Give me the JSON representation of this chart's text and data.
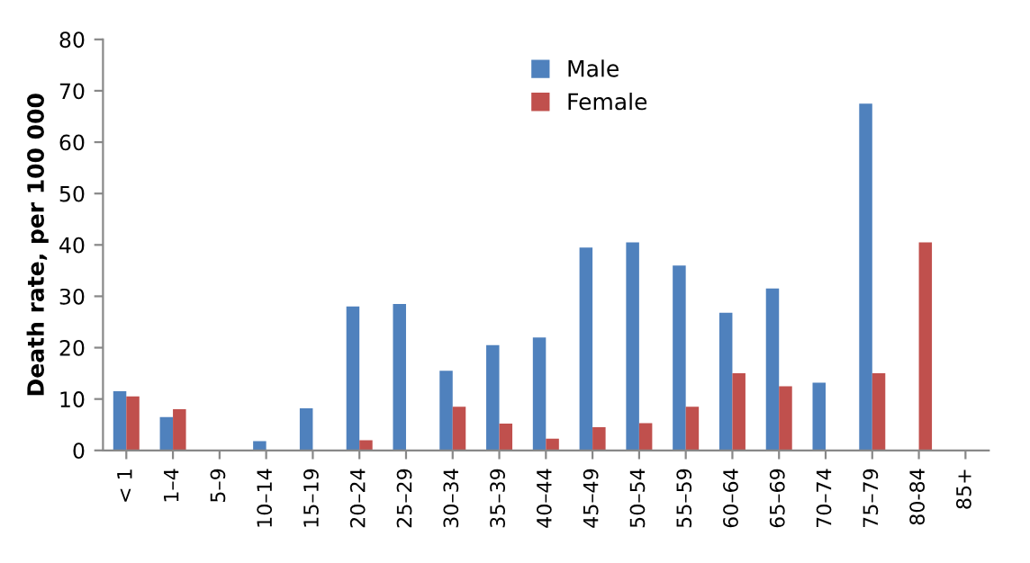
{
  "chart_data": {
    "type": "bar",
    "ylabel": "Death rate, per 100 000",
    "categories": [
      "< 1",
      "1–4",
      "5–9",
      "10–14",
      "15–19",
      "20–24",
      "25–29",
      "30–34",
      "35–39",
      "40–44",
      "45–49",
      "50–54",
      "55–59",
      "60–64",
      "65–69",
      "70–74",
      "75–79",
      "80-84",
      "85+"
    ],
    "series": [
      {
        "name": "Male",
        "color": "#4f81bd",
        "values": [
          11.5,
          6.5,
          0,
          1.8,
          8.2,
          28,
          28.5,
          15.5,
          20.5,
          22,
          39.5,
          40.5,
          36,
          26.8,
          31.5,
          13.2,
          67.5,
          0,
          0
        ]
      },
      {
        "name": "Female",
        "color": "#c0504d",
        "values": [
          10.5,
          8,
          0,
          0,
          0,
          2,
          0,
          8.5,
          5.2,
          2.3,
          4.5,
          5.3,
          8.5,
          15,
          12.5,
          0,
          15,
          40.5,
          0
        ]
      }
    ],
    "ylim": [
      0,
      80
    ],
    "yticks": [
      0,
      10,
      20,
      30,
      40,
      50,
      60,
      70,
      80
    ],
    "grid": false,
    "legend": "top"
  }
}
